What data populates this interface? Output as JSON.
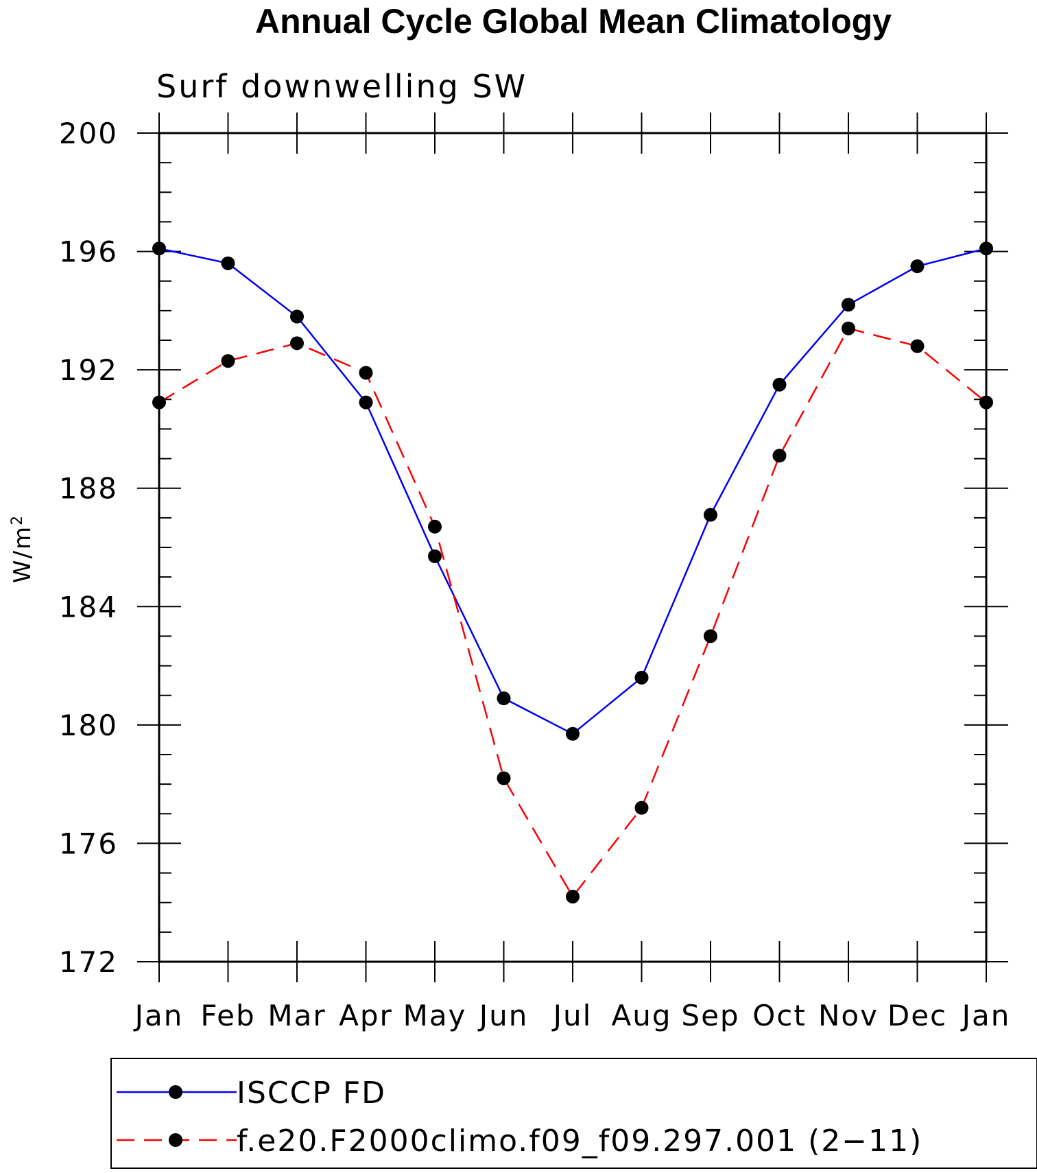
{
  "chart_data": {
    "type": "line",
    "title": "Annual Cycle Global Mean Climatology",
    "subtitle": "Surf downwelling SW",
    "ylabel": "W/m",
    "ylabel_superscript": "2",
    "ylim": [
      172,
      200
    ],
    "yticks": [
      172,
      176,
      180,
      184,
      188,
      192,
      196,
      200
    ],
    "categories": [
      "Jan",
      "Feb",
      "Mar",
      "Apr",
      "May",
      "Jun",
      "Jul",
      "Aug",
      "Sep",
      "Oct",
      "Nov",
      "Dec",
      "Jan"
    ],
    "grid": false,
    "legend_position": "bottom",
    "series": [
      {
        "name": "ISCCP FD",
        "color": "#0000ff",
        "line_style": "solid",
        "marker": "filled-circle",
        "values": [
          196.1,
          195.6,
          193.8,
          190.9,
          185.7,
          180.9,
          179.7,
          181.6,
          187.1,
          191.5,
          194.2,
          195.5,
          196.1
        ]
      },
      {
        "name": "f.e20.F2000climo.f09_f09.297.001 (2−11)",
        "color": "#ff0000",
        "line_style": "dashed",
        "marker": "filled-circle",
        "values": [
          190.9,
          192.3,
          192.9,
          191.9,
          186.7,
          178.2,
          174.2,
          177.2,
          183.0,
          189.1,
          193.4,
          192.8,
          190.9
        ]
      }
    ]
  }
}
